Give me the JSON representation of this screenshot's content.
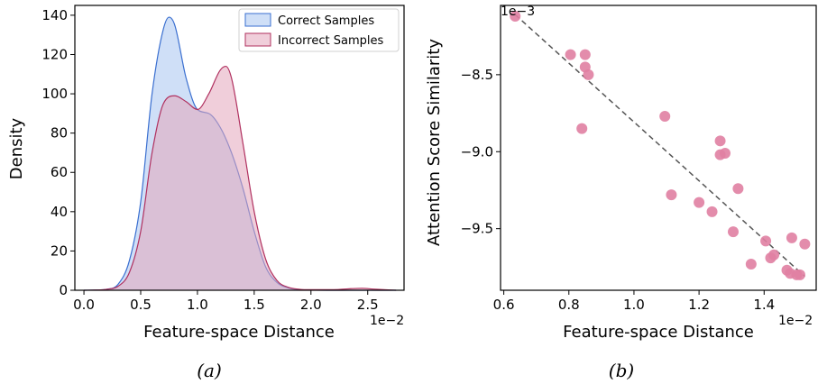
{
  "chart_data": [
    {
      "panel": "(a)",
      "type": "area",
      "xlabel": "Feature-space Distance",
      "ylabel": "Density",
      "x_offset_label": "1e−2",
      "xlim": [
        -0.08,
        2.82
      ],
      "ylim": [
        0,
        145
      ],
      "xticks": [
        0.0,
        0.5,
        1.0,
        1.5,
        2.0,
        2.5
      ],
      "xtick_labels": [
        "0.0",
        "0.5",
        "1.0",
        "1.5",
        "2.0",
        "2.5"
      ],
      "yticks": [
        0,
        20,
        40,
        60,
        80,
        100,
        120,
        140
      ],
      "ytick_labels": [
        "0",
        "20",
        "40",
        "60",
        "80",
        "100",
        "120",
        "140"
      ],
      "legend_position": "top-right",
      "series": [
        {
          "name": "Correct Samples",
          "fill": "#a8c4f0",
          "stroke": "#3a6fd0",
          "x": [
            0.0,
            0.1,
            0.2,
            0.3,
            0.4,
            0.5,
            0.6,
            0.7,
            0.75,
            0.8,
            0.9,
            1.0,
            1.1,
            1.2,
            1.3,
            1.4,
            1.5,
            1.6,
            1.7,
            1.8,
            1.9,
            2.0,
            2.2,
            2.4,
            2.6,
            2.75
          ],
          "y": [
            0,
            0.1,
            0.5,
            3,
            15,
            45,
            100,
            133,
            139,
            135,
            108,
            92,
            90,
            83,
            70,
            52,
            30,
            12,
            4,
            1.2,
            0.3,
            0.1,
            0,
            0,
            0,
            0
          ]
        },
        {
          "name": "Incorrect Samples",
          "fill": "#e3a6bc",
          "stroke": "#b0305f",
          "x": [
            0.0,
            0.1,
            0.2,
            0.3,
            0.4,
            0.5,
            0.6,
            0.7,
            0.8,
            0.9,
            1.0,
            1.1,
            1.2,
            1.25,
            1.3,
            1.4,
            1.5,
            1.6,
            1.7,
            1.8,
            1.9,
            2.0,
            2.2,
            2.35,
            2.45,
            2.55,
            2.75
          ],
          "y": [
            0,
            0.1,
            0.5,
            2,
            9,
            30,
            70,
            95,
            99,
            96,
            92,
            100,
            112,
            114,
            108,
            75,
            40,
            16,
            5,
            1.5,
            0.5,
            0.3,
            0.3,
            0.8,
            1,
            0.6,
            0
          ]
        }
      ]
    },
    {
      "panel": "(b)",
      "type": "scatter",
      "xlabel": "Feature-space Distance",
      "ylabel": "Attention Score Similarity",
      "x_offset_label": "1e−2",
      "y_offset_label": "1e−3",
      "xlim": [
        0.59,
        1.56
      ],
      "ylim": [
        -9.9,
        -8.05
      ],
      "xticks": [
        0.6,
        0.8,
        1.0,
        1.2,
        1.4
      ],
      "xtick_labels": [
        "0.6",
        "0.8",
        "1.0",
        "1.2",
        "1.4"
      ],
      "yticks": [
        -8.5,
        -9.0,
        -9.5
      ],
      "ytick_labels": [
        "−8.5",
        "−9.0",
        "−9.5"
      ],
      "point_color": "#e07fa2",
      "trendline": {
        "x": [
          0.635,
          1.525
        ],
        "y": [
          -8.11,
          -9.81
        ],
        "color": "#555555",
        "style": "dashed"
      },
      "points": [
        [
          0.635,
          -8.12
        ],
        [
          0.805,
          -8.37
        ],
        [
          0.85,
          -8.37
        ],
        [
          0.85,
          -8.45
        ],
        [
          0.86,
          -8.5
        ],
        [
          0.84,
          -8.85
        ],
        [
          1.095,
          -8.77
        ],
        [
          1.265,
          -8.93
        ],
        [
          1.265,
          -9.02
        ],
        [
          1.28,
          -9.01
        ],
        [
          1.115,
          -9.28
        ],
        [
          1.32,
          -9.24
        ],
        [
          1.2,
          -9.33
        ],
        [
          1.24,
          -9.39
        ],
        [
          1.305,
          -9.52
        ],
        [
          1.405,
          -9.58
        ],
        [
          1.485,
          -9.56
        ],
        [
          1.525,
          -9.6
        ],
        [
          1.42,
          -9.69
        ],
        [
          1.43,
          -9.67
        ],
        [
          1.36,
          -9.73
        ],
        [
          1.47,
          -9.77
        ],
        [
          1.48,
          -9.79
        ],
        [
          1.5,
          -9.8
        ],
        [
          1.51,
          -9.8
        ]
      ]
    }
  ],
  "captions": [
    "(a)",
    "(b)"
  ]
}
